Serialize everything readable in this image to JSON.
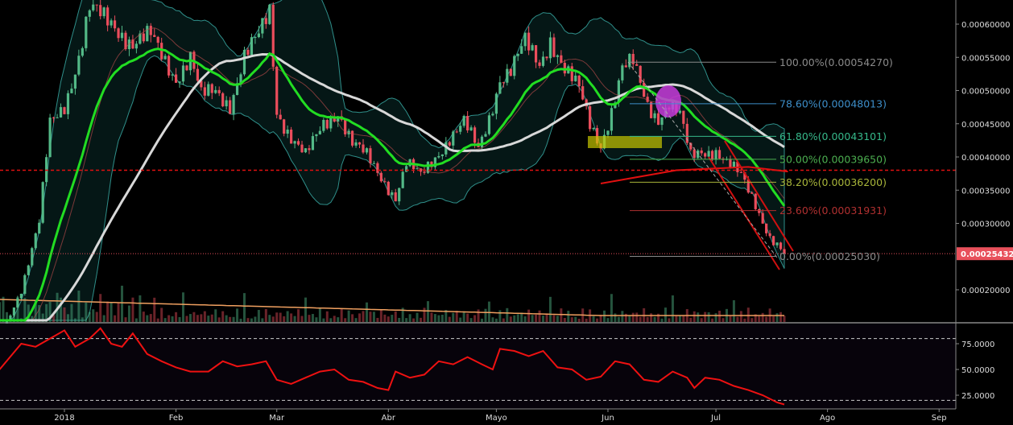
{
  "chart_data": [
    {
      "type": "candlestick",
      "symbol_pane": "price",
      "ylim": [
        0.00014,
        0.00064
      ],
      "y_ticks": [
        "0.00060000",
        "0.00055000",
        "0.00050000",
        "0.00045000",
        "0.00040000",
        "0.00035000",
        "0.00030000",
        "0.00020000"
      ],
      "y_tick_values": [
        0.0006,
        0.00055,
        0.0005,
        0.00045,
        0.0004,
        0.00035,
        0.0003,
        0.0002
      ],
      "x_ticks": [
        {
          "label": "2018",
          "date": "2018-01-01"
        },
        {
          "label": "Feb",
          "date": "2018-02-01"
        },
        {
          "label": "Mar",
          "date": "2018-03-01"
        },
        {
          "label": "Abr",
          "date": "2018-04-01"
        },
        {
          "label": "Mayo",
          "date": "2018-05-01"
        },
        {
          "label": "Jun",
          "date": "2018-06-01"
        },
        {
          "label": "Jul",
          "date": "2018-07-01"
        },
        {
          "label": "Ago",
          "date": "2018-08-01"
        },
        {
          "label": "Sep",
          "date": "2018-09-01"
        }
      ],
      "close_path": [
        [
          "2017-12-14",
          0.00013
        ],
        [
          "2017-12-20",
          0.0002
        ],
        [
          "2017-12-25",
          0.0003
        ],
        [
          "2017-12-28",
          0.00045
        ],
        [
          "2018-01-01",
          0.00048
        ],
        [
          "2018-01-05",
          0.00055
        ],
        [
          "2018-01-08",
          0.00062
        ],
        [
          "2018-01-15",
          0.0006
        ],
        [
          "2018-01-20",
          0.00057
        ],
        [
          "2018-01-25",
          0.00058
        ],
        [
          "2018-02-01",
          0.00052
        ],
        [
          "2018-02-05",
          0.00055
        ],
        [
          "2018-02-08",
          0.00049
        ],
        [
          "2018-02-12",
          0.0005
        ],
        [
          "2018-02-16",
          0.00048
        ],
        [
          "2018-02-20",
          0.00055
        ],
        [
          "2018-02-24",
          0.00058
        ],
        [
          "2018-02-27",
          0.00062
        ],
        [
          "2018-03-01",
          0.00047
        ],
        [
          "2018-03-05",
          0.00043
        ],
        [
          "2018-03-09",
          0.0004
        ],
        [
          "2018-03-14",
          0.00045
        ],
        [
          "2018-03-18",
          0.00047
        ],
        [
          "2018-03-22",
          0.00042
        ],
        [
          "2018-03-26",
          0.0004
        ],
        [
          "2018-03-30",
          0.00037
        ],
        [
          "2018-04-03",
          0.00034
        ],
        [
          "2018-04-06",
          0.00039
        ],
        [
          "2018-04-10",
          0.00037
        ],
        [
          "2018-04-14",
          0.0004
        ],
        [
          "2018-04-18",
          0.00043
        ],
        [
          "2018-04-22",
          0.00045
        ],
        [
          "2018-04-26",
          0.00041
        ],
        [
          "2018-04-29",
          0.00046
        ],
        [
          "2018-05-02",
          0.00052
        ],
        [
          "2018-05-05",
          0.00053
        ],
        [
          "2018-05-09",
          0.00057
        ],
        [
          "2018-05-13",
          0.00054
        ],
        [
          "2018-05-16",
          0.00058
        ],
        [
          "2018-05-20",
          0.00053
        ],
        [
          "2018-05-24",
          0.0005
        ],
        [
          "2018-05-27",
          0.00045
        ],
        [
          "2018-05-30",
          0.00042
        ],
        [
          "2018-06-02",
          0.00047
        ],
        [
          "2018-06-05",
          0.00053
        ],
        [
          "2018-06-08",
          0.00054
        ],
        [
          "2018-06-12",
          0.00048
        ],
        [
          "2018-06-15",
          0.00046
        ],
        [
          "2018-06-18",
          0.00048
        ],
        [
          "2018-06-21",
          0.00046
        ],
        [
          "2018-06-24",
          0.0004
        ],
        [
          "2018-06-27",
          0.00041
        ],
        [
          "2018-07-01",
          0.00041
        ],
        [
          "2018-07-04",
          0.00039
        ],
        [
          "2018-07-08",
          0.00037
        ],
        [
          "2018-07-12",
          0.00033
        ],
        [
          "2018-07-16",
          0.00028
        ],
        [
          "2018-07-20",
          0.00025432
        ]
      ],
      "last_price": "0.00025432",
      "horizontal_line": 0.00038,
      "ma200_path": [
        [
          "2018-05-30",
          0.00036
        ],
        [
          "2018-06-20",
          0.00038
        ],
        [
          "2018-07-10",
          0.000385
        ],
        [
          "2018-07-21",
          0.000378
        ]
      ],
      "fibonacci": [
        {
          "label": "100.00%(0.00054270)",
          "value": 0.0005427,
          "color": "#8a8a8a"
        },
        {
          "label": "78.60%(0.00048013)",
          "value": 0.00048013,
          "color": "#3d8ec9"
        },
        {
          "label": "61.80%(0.00043101)",
          "value": 0.00043101,
          "color": "#36b88a"
        },
        {
          "label": "50.00%(0.00039650)",
          "value": 0.0003965,
          "color": "#4caf50"
        },
        {
          "label": "38.20%(0.00036200)",
          "value": 0.000362,
          "color": "#a8b53a"
        },
        {
          "label": "23.60%(0.00031931)",
          "value": 0.00031931,
          "color": "#b03030"
        },
        {
          "label": "0.00%(0.00025030)",
          "value": 0.0002503,
          "color": "#8a8a8a"
        }
      ],
      "colors": {
        "up": "#53b987",
        "down": "#eb4d5c",
        "ema": "#22dd22",
        "sma": "#d8d8d8",
        "bands": "#2f8f8a",
        "ma200": "#e01010",
        "volume_ma": "#f0a060",
        "last_price": "#e8505b"
      }
    },
    {
      "type": "line",
      "symbol_pane": "rsi",
      "ylim": [
        10,
        95
      ],
      "y_ticks": [
        "75.0000",
        "50.0000",
        "25.0000"
      ],
      "y_tick_values": [
        75,
        50,
        25
      ],
      "bands": [
        80,
        20
      ],
      "color": "#ee1111",
      "points": [
        [
          "2017-12-14",
          50
        ],
        [
          "2017-12-20",
          75
        ],
        [
          "2017-12-24",
          72
        ],
        [
          "2017-12-28",
          80
        ],
        [
          "2018-01-01",
          88
        ],
        [
          "2018-01-04",
          72
        ],
        [
          "2018-01-08",
          80
        ],
        [
          "2018-01-11",
          90
        ],
        [
          "2018-01-14",
          75
        ],
        [
          "2018-01-17",
          72
        ],
        [
          "2018-01-20",
          85
        ],
        [
          "2018-01-24",
          65
        ],
        [
          "2018-01-28",
          58
        ],
        [
          "2018-02-01",
          52
        ],
        [
          "2018-02-05",
          48
        ],
        [
          "2018-02-10",
          48
        ],
        [
          "2018-02-14",
          58
        ],
        [
          "2018-02-18",
          53
        ],
        [
          "2018-02-22",
          55
        ],
        [
          "2018-02-26",
          58
        ],
        [
          "2018-03-01",
          40
        ],
        [
          "2018-03-05",
          36
        ],
        [
          "2018-03-09",
          42
        ],
        [
          "2018-03-13",
          48
        ],
        [
          "2018-03-17",
          50
        ],
        [
          "2018-03-21",
          40
        ],
        [
          "2018-03-25",
          38
        ],
        [
          "2018-03-29",
          32
        ],
        [
          "2018-04-01",
          30
        ],
        [
          "2018-04-03",
          48
        ],
        [
          "2018-04-07",
          42
        ],
        [
          "2018-04-11",
          45
        ],
        [
          "2018-04-15",
          58
        ],
        [
          "2018-04-19",
          55
        ],
        [
          "2018-04-23",
          62
        ],
        [
          "2018-04-27",
          55
        ],
        [
          "2018-04-30",
          50
        ],
        [
          "2018-05-02",
          70
        ],
        [
          "2018-05-06",
          68
        ],
        [
          "2018-05-10",
          63
        ],
        [
          "2018-05-14",
          68
        ],
        [
          "2018-05-18",
          52
        ],
        [
          "2018-05-22",
          50
        ],
        [
          "2018-05-26",
          40
        ],
        [
          "2018-05-30",
          43
        ],
        [
          "2018-06-03",
          58
        ],
        [
          "2018-06-07",
          55
        ],
        [
          "2018-06-11",
          40
        ],
        [
          "2018-06-15",
          38
        ],
        [
          "2018-06-19",
          48
        ],
        [
          "2018-06-23",
          42
        ],
        [
          "2018-06-25",
          32
        ],
        [
          "2018-06-28",
          42
        ],
        [
          "2018-07-02",
          40
        ],
        [
          "2018-07-06",
          34
        ],
        [
          "2018-07-10",
          30
        ],
        [
          "2018-07-14",
          25
        ],
        [
          "2018-07-18",
          18
        ],
        [
          "2018-07-20",
          16
        ]
      ]
    }
  ]
}
